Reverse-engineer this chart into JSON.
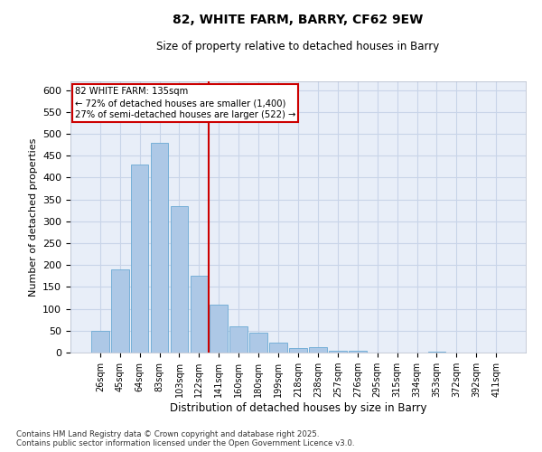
{
  "title1": "82, WHITE FARM, BARRY, CF62 9EW",
  "title2": "Size of property relative to detached houses in Barry",
  "xlabel": "Distribution of detached houses by size in Barry",
  "ylabel": "Number of detached properties",
  "categories": [
    "26sqm",
    "45sqm",
    "64sqm",
    "83sqm",
    "103sqm",
    "122sqm",
    "141sqm",
    "160sqm",
    "180sqm",
    "199sqm",
    "218sqm",
    "238sqm",
    "257sqm",
    "276sqm",
    "295sqm",
    "315sqm",
    "334sqm",
    "353sqm",
    "372sqm",
    "392sqm",
    "411sqm"
  ],
  "values": [
    50,
    190,
    430,
    480,
    335,
    175,
    110,
    60,
    45,
    22,
    10,
    12,
    5,
    4,
    1,
    0,
    0,
    2,
    0,
    0,
    0
  ],
  "bar_color": "#adc8e6",
  "bar_edge_color": "#6aaad4",
  "grid_color": "#c8d4e8",
  "bg_color": "#e8eef8",
  "vline_color": "#cc0000",
  "annotation_text": "82 WHITE FARM: 135sqm\n← 72% of detached houses are smaller (1,400)\n27% of semi-detached houses are larger (522) →",
  "annotation_box_color": "#cc0000",
  "footer_text": "Contains HM Land Registry data © Crown copyright and database right 2025.\nContains public sector information licensed under the Open Government Licence v3.0.",
  "ylim": [
    0,
    620
  ],
  "yticks": [
    0,
    50,
    100,
    150,
    200,
    250,
    300,
    350,
    400,
    450,
    500,
    550,
    600
  ]
}
